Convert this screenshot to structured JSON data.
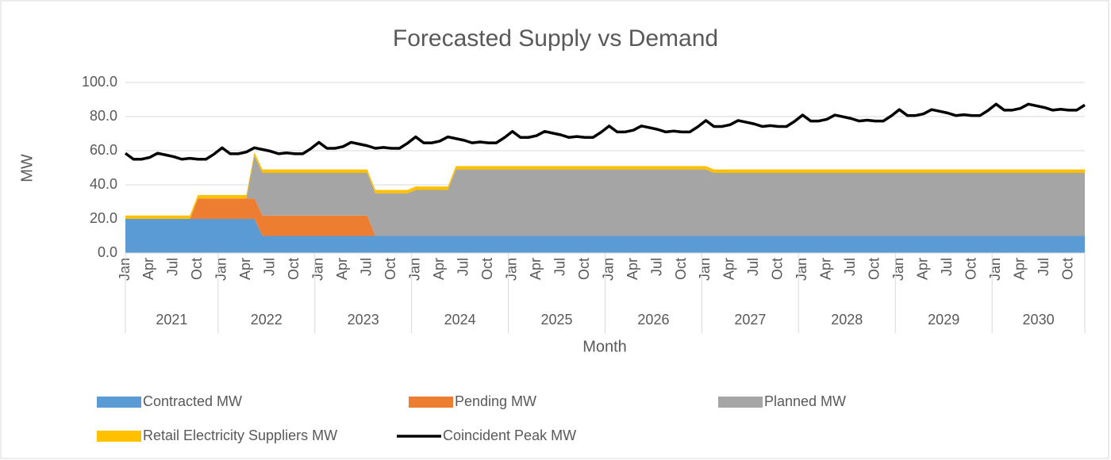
{
  "chart_data": {
    "type": "area",
    "title": "Forecasted Supply vs Demand",
    "y_label": "MW",
    "x_label": "Month",
    "categories": [
      "Jan",
      null,
      null,
      "Apr",
      null,
      null,
      "Jul",
      null,
      null,
      "Oct",
      null,
      null,
      "Jan",
      null,
      null,
      "Apr",
      null,
      null,
      "Jul",
      null,
      null,
      "Oct",
      null,
      null,
      "Jan",
      null,
      null,
      "Apr",
      null,
      null,
      "Jul",
      null,
      null,
      "Oct",
      null,
      null,
      "Jan",
      null,
      null,
      "Apr",
      null,
      null,
      "Jul",
      null,
      null,
      "Oct",
      null,
      null,
      "Jan",
      null,
      null,
      "Apr",
      null,
      null,
      "Jul",
      null,
      null,
      "Oct",
      null,
      null,
      "Jan",
      null,
      null,
      "Apr",
      null,
      null,
      "Jul",
      null,
      null,
      "Oct",
      null,
      null,
      "Jan",
      null,
      null,
      "Apr",
      null,
      null,
      "Jul",
      null,
      null,
      "Oct",
      null,
      null,
      "Jan",
      null,
      null,
      "Apr",
      null,
      null,
      "Jul",
      null,
      null,
      "Oct",
      null,
      null,
      "Jan",
      null,
      null,
      "Apr",
      null,
      null,
      "Jul",
      null,
      null,
      "Oct",
      null,
      null,
      "Jan",
      null,
      null,
      "Apr",
      null,
      null,
      "Jul",
      null,
      null,
      "Oct",
      null,
      null
    ],
    "year_labels": [
      "2021",
      "2022",
      "2023",
      "2024",
      "2025",
      "2026",
      "2027",
      "2028",
      "2029",
      "2030"
    ],
    "ylim": [
      0,
      100
    ],
    "yticks": [
      {
        "value": 0,
        "label": "0.0"
      },
      {
        "value": 20,
        "label": "20.0"
      },
      {
        "value": 40,
        "label": "40.0"
      },
      {
        "value": 60,
        "label": "60.0"
      },
      {
        "value": 80,
        "label": "80.0"
      },
      {
        "value": 100,
        "label": "100.0"
      }
    ],
    "grid": true,
    "series": [
      {
        "name": "Contracted MW",
        "color": "#5b9bd5",
        "type": "area",
        "values": [
          20,
          20,
          20,
          20,
          20,
          20,
          20,
          20,
          20,
          20,
          20,
          20,
          20,
          20,
          20,
          20,
          20,
          10,
          10,
          10,
          10,
          10,
          10,
          10,
          10,
          10,
          10,
          10,
          10,
          10,
          10,
          10,
          10,
          10,
          10,
          10,
          10,
          10,
          10,
          10,
          10,
          10,
          10,
          10,
          10,
          10,
          10,
          10,
          10,
          10,
          10,
          10,
          10,
          10,
          10,
          10,
          10,
          10,
          10,
          10,
          10,
          10,
          10,
          10,
          10,
          10,
          10,
          10,
          10,
          10,
          10,
          10,
          10,
          10,
          10,
          10,
          10,
          10,
          10,
          10,
          10,
          10,
          10,
          10,
          10,
          10,
          10,
          10,
          10,
          10,
          10,
          10,
          10,
          10,
          10,
          10,
          10,
          10,
          10,
          10,
          10,
          10,
          10,
          10,
          10,
          10,
          10,
          10,
          10,
          10,
          10,
          10,
          10,
          10,
          10,
          10,
          10,
          10,
          10,
          10
        ]
      },
      {
        "name": "Pending MW",
        "color": "#ed7d31",
        "type": "area",
        "values": [
          0,
          0,
          0,
          0,
          0,
          0,
          0,
          0,
          0,
          12,
          12,
          12,
          12,
          12,
          12,
          12,
          12,
          12,
          12,
          12,
          12,
          12,
          12,
          12,
          12,
          12,
          12,
          12,
          12,
          12,
          12,
          0,
          0,
          0,
          0,
          0,
          0,
          0,
          0,
          0,
          0,
          0,
          0,
          0,
          0,
          0,
          0,
          0,
          0,
          0,
          0,
          0,
          0,
          0,
          0,
          0,
          0,
          0,
          0,
          0,
          0,
          0,
          0,
          0,
          0,
          0,
          0,
          0,
          0,
          0,
          0,
          0,
          0,
          0,
          0,
          0,
          0,
          0,
          0,
          0,
          0,
          0,
          0,
          0,
          0,
          0,
          0,
          0,
          0,
          0,
          0,
          0,
          0,
          0,
          0,
          0,
          0,
          0,
          0,
          0,
          0,
          0,
          0,
          0,
          0,
          0,
          0,
          0,
          0,
          0,
          0,
          0,
          0,
          0,
          0,
          0,
          0,
          0,
          0,
          0
        ]
      },
      {
        "name": "Planned MW",
        "color": "#a5a5a5",
        "type": "area",
        "values": [
          0,
          0,
          0,
          0,
          0,
          0,
          0,
          0,
          0,
          0,
          0,
          0,
          0,
          0,
          0,
          0,
          25,
          25,
          25,
          25,
          25,
          25,
          25,
          25,
          25,
          25,
          25,
          25,
          25,
          25,
          25,
          25,
          25,
          25,
          25,
          25,
          27,
          27,
          27,
          27,
          27,
          39,
          39,
          39,
          39,
          39,
          39,
          39,
          39,
          39,
          39,
          39,
          39,
          39,
          39,
          39,
          39,
          39,
          39,
          39,
          39,
          39,
          39,
          39,
          39,
          39,
          39,
          39,
          39,
          39,
          39,
          39,
          39,
          37,
          37,
          37,
          37,
          37,
          37,
          37,
          37,
          37,
          37,
          37,
          37,
          37,
          37,
          37,
          37,
          37,
          37,
          37,
          37,
          37,
          37,
          37,
          37,
          37,
          37,
          37,
          37,
          37,
          37,
          37,
          37,
          37,
          37,
          37,
          37,
          37,
          37,
          37,
          37,
          37,
          37,
          37,
          37,
          37,
          37,
          37
        ]
      },
      {
        "name": "Retail Electricity Suppliers MW",
        "color": "#ffc000",
        "type": "area",
        "values": [
          2,
          2,
          2,
          2,
          2,
          2,
          2,
          2,
          2,
          2,
          2,
          2,
          2,
          2,
          2,
          2,
          2,
          2,
          2,
          2,
          2,
          2,
          2,
          2,
          2,
          2,
          2,
          2,
          2,
          2,
          2,
          2,
          2,
          2,
          2,
          2,
          2,
          2,
          2,
          2,
          2,
          2,
          2,
          2,
          2,
          2,
          2,
          2,
          2,
          2,
          2,
          2,
          2,
          2,
          2,
          2,
          2,
          2,
          2,
          2,
          2,
          2,
          2,
          2,
          2,
          2,
          2,
          2,
          2,
          2,
          2,
          2,
          2,
          2,
          2,
          2,
          2,
          2,
          2,
          2,
          2,
          2,
          2,
          2,
          2,
          2,
          2,
          2,
          2,
          2,
          2,
          2,
          2,
          2,
          2,
          2,
          2,
          2,
          2,
          2,
          2,
          2,
          2,
          2,
          2,
          2,
          2,
          2,
          2,
          2,
          2,
          2,
          2,
          2,
          2,
          2,
          2,
          2,
          2,
          2
        ]
      },
      {
        "name": "Coincident Peak MW",
        "color": "#000000",
        "type": "line",
        "values": [
          58.5,
          55,
          55,
          56,
          58.5,
          57.5,
          56.5,
          55,
          55.5,
          55,
          55,
          58,
          61.7,
          58.2,
          58.2,
          59.2,
          61.7,
          60.7,
          59.7,
          58.2,
          58.7,
          58.2,
          58.2,
          61.2,
          64.9,
          61.4,
          61.4,
          62.4,
          64.9,
          63.9,
          62.9,
          61.4,
          61.9,
          61.4,
          61.4,
          64.4,
          68.1,
          64.6,
          64.6,
          65.6,
          68.1,
          67.1,
          66.1,
          64.6,
          65.1,
          64.6,
          64.6,
          67.6,
          71.3,
          67.8,
          67.8,
          68.8,
          71.3,
          70.3,
          69.3,
          67.8,
          68.3,
          67.8,
          67.8,
          70.8,
          74.5,
          71,
          71,
          72,
          74.5,
          73.5,
          72.5,
          71,
          71.5,
          71,
          71,
          74,
          77.7,
          74.2,
          74.2,
          75.2,
          77.7,
          76.7,
          75.7,
          74.2,
          74.7,
          74.2,
          74.2,
          77.2,
          80.9,
          77.4,
          77.4,
          78.4,
          80.9,
          79.9,
          78.9,
          77.4,
          77.9,
          77.4,
          77.4,
          80.4,
          84.1,
          80.6,
          80.6,
          81.6,
          84.1,
          83.1,
          82.1,
          80.6,
          81.1,
          80.6,
          80.6,
          83.6,
          87.3,
          83.8,
          83.8,
          84.8,
          87.3,
          86.3,
          85.3,
          83.8,
          84.3,
          83.8,
          83.8,
          86.8
        ]
      }
    ]
  }
}
